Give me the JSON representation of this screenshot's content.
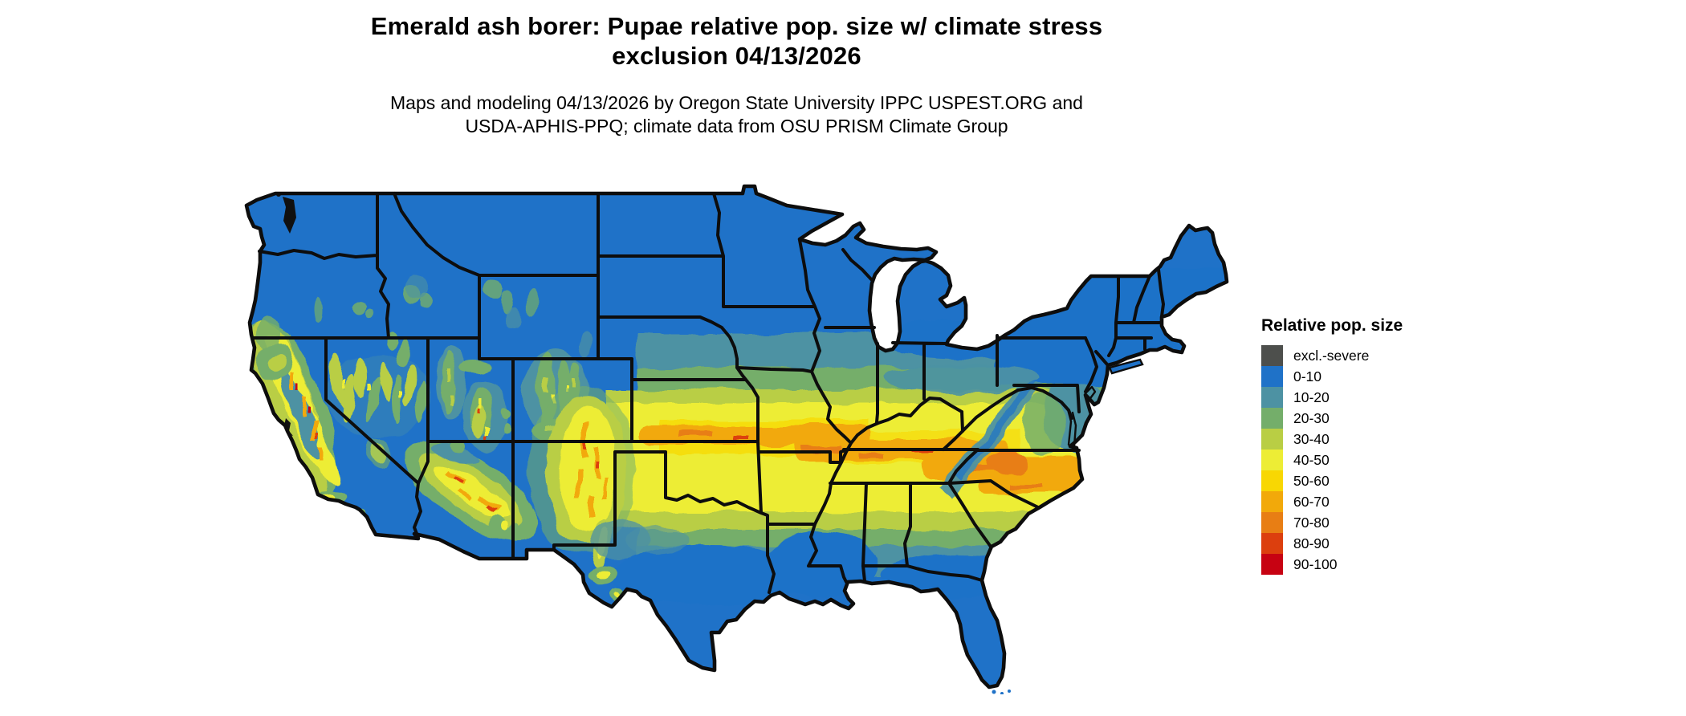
{
  "title": {
    "line1": "Emerald ash borer: Pupae relative pop. size w/ climate stress",
    "line2": "exclusion 04/13/2026"
  },
  "subtitle": {
    "line1": "Maps and modeling 04/13/2026 by Oregon State University IPPC USPEST.ORG and",
    "line2": "USDA-APHIS-PPQ; climate data from OSU PRISM Climate Group"
  },
  "legend": {
    "title": "Relative pop. size",
    "entries": [
      {
        "label": "excl.-severe",
        "color": "#4d4f4c"
      },
      {
        "label": "0-10",
        "color": "#1f72c8"
      },
      {
        "label": "10-20",
        "color": "#4d92a3"
      },
      {
        "label": "20-30",
        "color": "#74ae6a"
      },
      {
        "label": "30-40",
        "color": "#b9ce44"
      },
      {
        "label": "40-50",
        "color": "#eded35"
      },
      {
        "label": "50-60",
        "color": "#f8d703"
      },
      {
        "label": "60-70",
        "color": "#f2a90a"
      },
      {
        "label": "70-80",
        "color": "#e87e14"
      },
      {
        "label": "80-90",
        "color": "#dc3f0e"
      },
      {
        "label": "90-100",
        "color": "#c70212"
      }
    ]
  },
  "map": {
    "land_base_color": "#1f72c8",
    "water_color": "#ffffff",
    "state_border_color": "#0d0d0d"
  }
}
